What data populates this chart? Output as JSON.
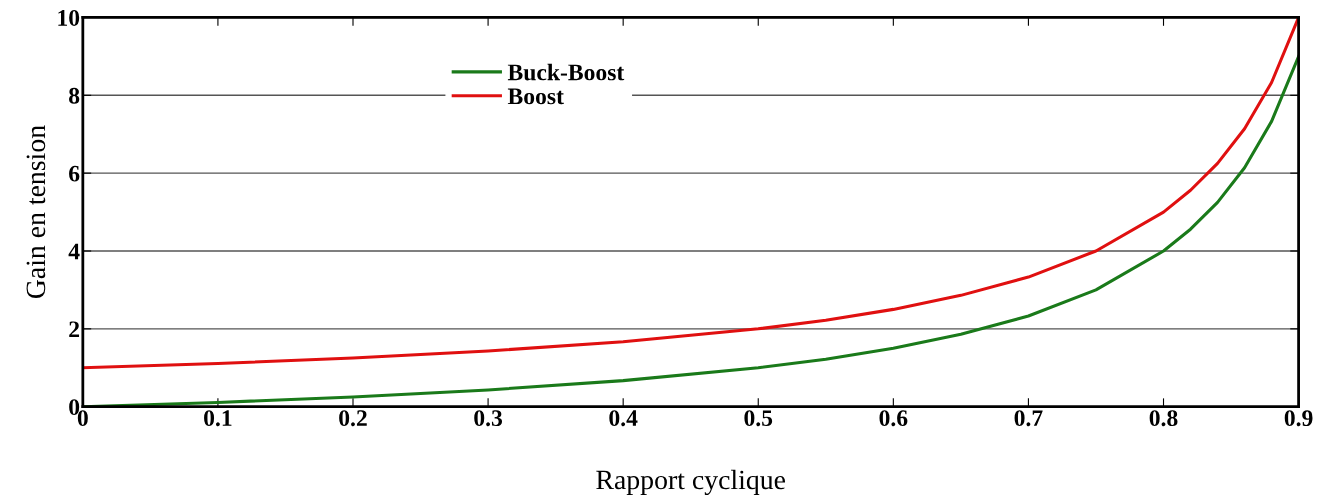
{
  "chart_data": {
    "type": "line",
    "xlabel": "Rapport cyclique",
    "ylabel": "Gain en tension",
    "x": [
      0,
      0.1,
      0.2,
      0.3,
      0.4,
      0.5,
      0.55,
      0.6,
      0.65,
      0.7,
      0.75,
      0.8,
      0.82,
      0.84,
      0.86,
      0.88,
      0.9
    ],
    "series": [
      {
        "name": "Buck-Boost",
        "color": "#1a7a1a",
        "values": [
          0,
          0.11,
          0.25,
          0.43,
          0.67,
          1,
          1.22,
          1.5,
          1.86,
          2.33,
          3,
          4,
          4.56,
          5.25,
          6.14,
          7.33,
          9
        ]
      },
      {
        "name": "Boost",
        "color": "#e01010",
        "values": [
          1,
          1.11,
          1.25,
          1.43,
          1.67,
          2,
          2.22,
          2.5,
          2.86,
          3.33,
          4,
          5,
          5.56,
          6.25,
          7.14,
          8.33,
          10
        ]
      }
    ],
    "xlim": [
      0,
      0.9
    ],
    "xticks": [
      0,
      0.1,
      0.2,
      0.3,
      0.4,
      0.5,
      0.6,
      0.7,
      0.8,
      0.9
    ],
    "ylim": [
      0,
      10
    ],
    "yticks": [
      0,
      2,
      4,
      6,
      8,
      10
    ],
    "grid": "y",
    "legend": "top",
    "marker": "none",
    "line_style": "solid"
  }
}
